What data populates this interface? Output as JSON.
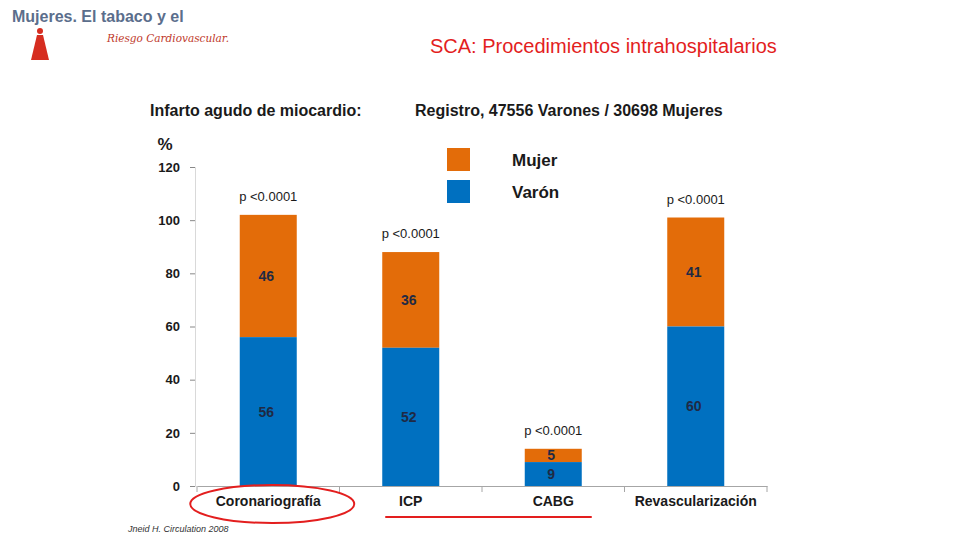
{
  "slide": {
    "brand": "Mujeres. El tabaco y el",
    "brand_sub": "Riesgo Cardiovascular.",
    "title": "SCA: Procedimientos intrahospitalarios"
  },
  "chart_data": {
    "type": "bar",
    "stacked": true,
    "data_labels": true,
    "grid": false,
    "legend": "top",
    "title": "Infarto agudo de miocardio:",
    "subtitle": "Registro, 47556 Varones / 30698 Mujeres",
    "y_label": "%",
    "source": "Jneid H. Circulation 2008",
    "categories": [
      "Coronariografía",
      "ICP",
      "CABG",
      "Revascularización"
    ],
    "series": [
      {
        "name": "Mujer",
        "color": "#e36c09",
        "values": [
          46,
          36,
          5,
          41
        ]
      },
      {
        "name": "Varón",
        "color": "#0070c0",
        "values": [
          56,
          52,
          9,
          60
        ]
      }
    ],
    "annotations": [
      "p <0.0001",
      "p <0.0001",
      "p <0.0001",
      "p <0.0001"
    ],
    "ylim": [
      0,
      120
    ],
    "yticks": [
      0,
      20,
      40,
      60,
      80,
      100,
      120
    ]
  }
}
